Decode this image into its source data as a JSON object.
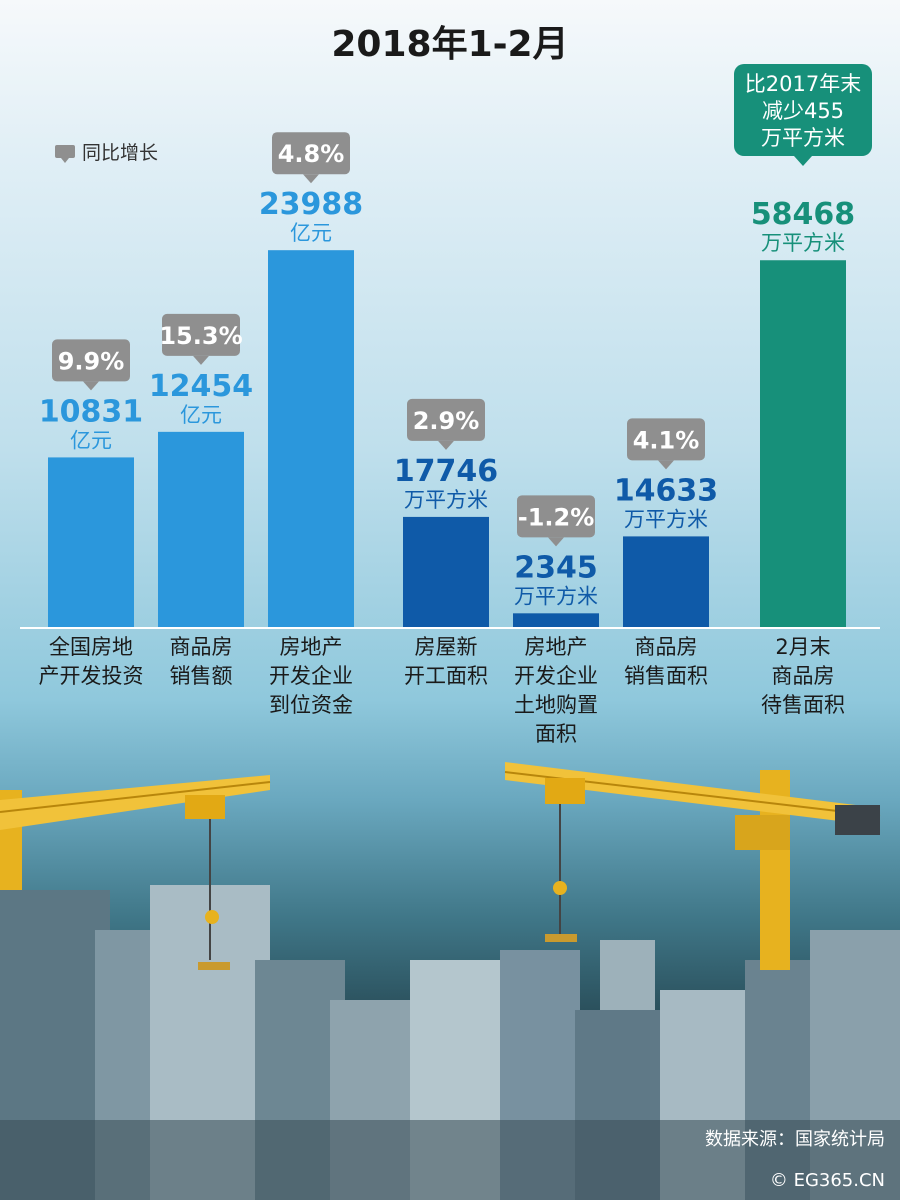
{
  "header": {
    "title": "2018年1-2月"
  },
  "legend": {
    "label": "同比增长"
  },
  "chart_data": {
    "type": "bar",
    "title": "2018年1-2月",
    "bars": [
      {
        "label_lines": [
          "全国房地",
          "产开发投资"
        ],
        "value": 10831,
        "value_text": "10831",
        "unit": "亿元",
        "growth": "9.9%",
        "color": "#2b97dc"
      },
      {
        "label_lines": [
          "商品房",
          "销售额"
        ],
        "value": 12454,
        "value_text": "12454",
        "unit": "亿元",
        "growth": "15.3%",
        "color": "#2b97dc"
      },
      {
        "label_lines": [
          "房地产",
          "开发企业",
          "到位资金"
        ],
        "value": 23988,
        "value_text": "23988",
        "unit": "亿元",
        "growth": "4.8%",
        "color": "#2b97dc"
      },
      {
        "label_lines": [
          "房屋新",
          "开工面积"
        ],
        "value": 17746,
        "value_text": "17746",
        "unit": "万平方米",
        "growth": "2.9%",
        "color": "#0f5aa8"
      },
      {
        "label_lines": [
          "房地产",
          "开发企业",
          "土地购置",
          "面积"
        ],
        "value": 2345,
        "value_text": "2345",
        "unit": "万平方米",
        "growth": "-1.2%",
        "color": "#0f5aa8"
      },
      {
        "label_lines": [
          "商品房",
          "销售面积"
        ],
        "value": 14633,
        "value_text": "14633",
        "unit": "万平方米",
        "growth": "4.1%",
        "color": "#0f5aa8"
      },
      {
        "label_lines": [
          "2月末",
          "商品房",
          "待售面积"
        ],
        "value": 58468,
        "value_text": "58468",
        "unit": "万平方米",
        "note_lines": [
          "比2017年末",
          "减少455",
          "万平方米"
        ],
        "color": "#17907a"
      }
    ]
  },
  "footer": {
    "source": "数据来源：国家统计局",
    "copyright": "© EG365.CN"
  },
  "colors": {
    "badge": "#8f8f8f",
    "note": "#17907a",
    "baseline": "#ffffff"
  }
}
